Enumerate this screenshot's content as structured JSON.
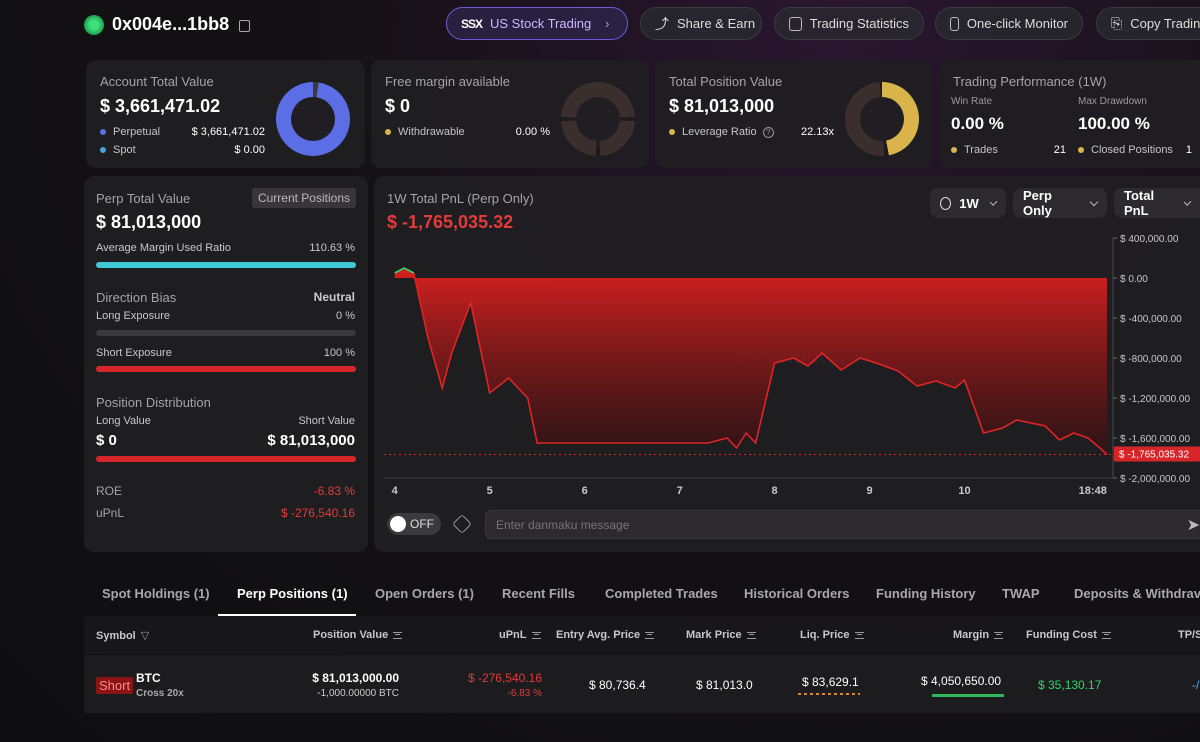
{
  "header": {
    "address": "0x004e...1bb8",
    "buttons": {
      "us_stock": "US Stock Trading",
      "share": "Share & Earn",
      "stats": "Trading Statistics",
      "monitor": "One-click Monitor",
      "copy": "Copy Tradin"
    }
  },
  "account": {
    "title": "Account Total Value",
    "value": "$ 3,661,471.02",
    "rows": [
      {
        "label": "Perpetual",
        "value": "$ 3,661,471.02",
        "color": "#5b6ee6"
      },
      {
        "label": "Spot",
        "value": "$ 0.00",
        "color": "#4aa3df"
      }
    ]
  },
  "margin": {
    "title": "Free margin available",
    "value": "$ 0",
    "row_label": "Withdrawable",
    "row_value": "0.00 %"
  },
  "position": {
    "title": "Total Position Value",
    "value": "$ 81,013,000",
    "row_label": "Leverage Ratio",
    "row_value": "22.13x"
  },
  "performance": {
    "title": "Trading Performance (1W)",
    "win_label": "Win Rate",
    "win_value": "0.00 %",
    "dd_label": "Max Drawdown",
    "dd_value": "100.00 %",
    "trades_label": "Trades",
    "trades_value": "21",
    "closed_label": "Closed Positions",
    "closed_value": "1"
  },
  "perp": {
    "title": "Perp Total Value",
    "badge": "Current Positions",
    "value": "$ 81,013,000",
    "margin_label": "Average Margin Used Ratio",
    "margin_value": "110.63 %",
    "margin_fill": 1.0,
    "bias_title": "Direction Bias",
    "bias_value": "Neutral",
    "long_label": "Long Exposure",
    "long_value": "0 %",
    "short_label": "Short Exposure",
    "short_value": "100 %",
    "dist_title": "Position Distribution",
    "long_value_label": "Long Value",
    "short_value_label": "Short Value",
    "long_amount": "$ 0",
    "short_amount": "$ 81,013,000",
    "roe_label": "ROE",
    "roe_value": "-6.83 %",
    "upnl_label": "uPnL",
    "upnl_value": "$ -276,540.16"
  },
  "chart_panel": {
    "title": "1W Total PnL (Perp Only)",
    "value": "$ -1,765,035.32",
    "dropdowns": [
      "1W",
      "Perp Only",
      "Total PnL"
    ],
    "current_label": "$ -1,765,035.32",
    "watermark": "Hyperbot",
    "toggle_label": "OFF",
    "danmaku_placeholder": "Enter danmaku message"
  },
  "chart_data": {
    "type": "area",
    "title": "1W Total PnL (Perp Only)",
    "x_ticks": [
      "4",
      "5",
      "6",
      "7",
      "8",
      "9",
      "10",
      "18:48"
    ],
    "y_ticks": [
      "$ 400,000.00",
      "$ 0.00",
      "$ -400,000.00",
      "$ -800,000.00",
      "$ -1,200,000.00",
      "$ -1,600,000.00",
      "$ -2,000,000.00"
    ],
    "ylim": [
      -2000000,
      400000
    ],
    "x": [
      4.0,
      4.1,
      4.2,
      4.35,
      4.5,
      4.6,
      4.8,
      5.0,
      5.2,
      5.4,
      5.5,
      6.0,
      6.5,
      7.0,
      7.3,
      7.5,
      7.6,
      7.7,
      7.8,
      7.9,
      8.0,
      8.2,
      8.35,
      8.5,
      8.7,
      8.9,
      9.1,
      9.3,
      9.5,
      9.7,
      9.9,
      10.0,
      10.2,
      10.4,
      10.55,
      10.7,
      10.85,
      11.0,
      11.15,
      11.3,
      11.4,
      11.5
    ],
    "values": [
      50000,
      100000,
      50000,
      -600000,
      -1100000,
      -750000,
      -250000,
      -1150000,
      -1000000,
      -1200000,
      -1650000,
      -1650000,
      -1650000,
      -1650000,
      -1650000,
      -1600000,
      -1700000,
      -1550000,
      -1650000,
      -1250000,
      -850000,
      -800000,
      -880000,
      -750000,
      -920000,
      -800000,
      -860000,
      -930000,
      -1080000,
      -1030000,
      -1100000,
      -1020000,
      -1550000,
      -1500000,
      -1420000,
      -1450000,
      -1480000,
      -1620000,
      -1550000,
      -1600000,
      -1680000,
      -1765035
    ]
  },
  "tabs": [
    "Spot Holdings (1)",
    "Perp Positions (1)",
    "Open Orders (1)",
    "Recent Fills",
    "Completed Trades",
    "Historical Orders",
    "Funding History",
    "TWAP",
    "Deposits & Withdrav"
  ],
  "table": {
    "headers": [
      "Symbol",
      "Position Value",
      "uPnL",
      "Entry Avg. Price",
      "Mark Price",
      "Liq. Price",
      "Margin",
      "Funding Cost",
      "TP/S"
    ],
    "row": {
      "side": "Short",
      "symbol": "BTC",
      "mode": "Cross 20x",
      "position_value": "$ 81,013,000.00",
      "position_size": "-1,000.00000 BTC",
      "upnl": "$ -276,540.16",
      "upnl_pct": "-6.83 %",
      "entry": "$ 80,736.4",
      "mark": "$ 81,013.0",
      "liq": "$ 83,629.1",
      "margin": "$ 4,050,650.00",
      "funding": "$ 35,130.17",
      "tpsl": "-/"
    }
  }
}
